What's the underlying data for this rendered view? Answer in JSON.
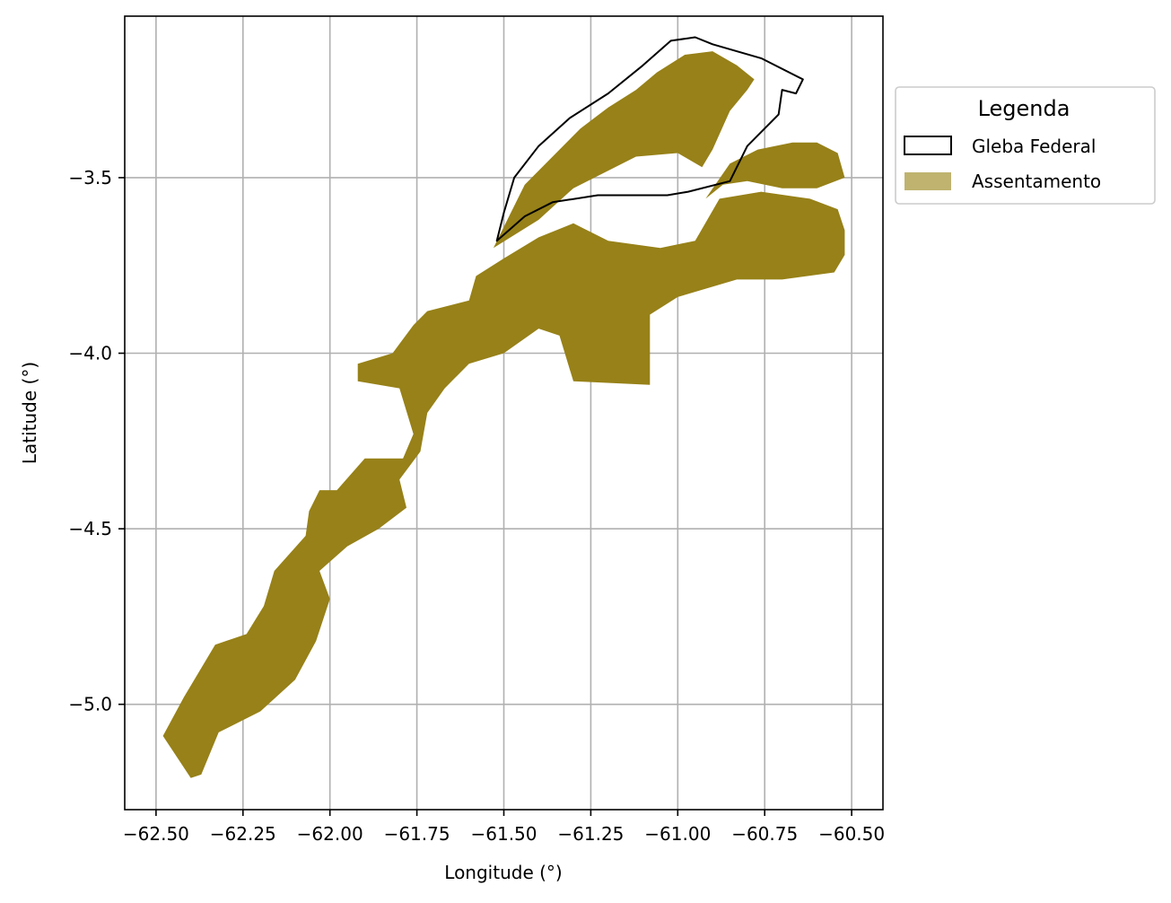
{
  "chart_data": {
    "type": "map",
    "title": "",
    "xlabel": "Longitude (°)",
    "ylabel": "Latitude (°)",
    "xlim": [
      -62.59,
      -60.41
    ],
    "ylim": [
      -5.3,
      -3.04
    ],
    "grid": true,
    "x_ticks": [
      -62.5,
      -62.25,
      -62.0,
      -61.75,
      -61.5,
      -61.25,
      -61.0,
      -60.75,
      -60.5
    ],
    "x_tick_labels": [
      "−62.50",
      "−62.25",
      "−62.00",
      "−61.75",
      "−61.50",
      "−61.25",
      "−61.00",
      "−60.75",
      "−60.50"
    ],
    "y_ticks": [
      -3.5,
      -4.0,
      -4.5,
      -5.0
    ],
    "y_tick_labels": [
      "−3.5",
      "−4.0",
      "−4.5",
      "−5.0"
    ],
    "legend": {
      "title": "Legenda",
      "placement": "outside-upper-right",
      "entries": [
        {
          "label": "Gleba Federal",
          "fill": "#ffffff",
          "edge": "#000000",
          "kind": "outline"
        },
        {
          "label": "Assentamento",
          "fill": "#bfb36f",
          "edge": "#bfb36f",
          "kind": "filled"
        }
      ]
    },
    "layers": [
      {
        "name": "Assentamento",
        "color": "#978118",
        "polygons": [
          [
            [
              -62.48,
              -5.09
            ],
            [
              -62.42,
              -4.98
            ],
            [
              -62.33,
              -4.83
            ],
            [
              -62.24,
              -4.8
            ],
            [
              -62.19,
              -4.72
            ],
            [
              -62.16,
              -4.62
            ],
            [
              -62.07,
              -4.52
            ],
            [
              -62.06,
              -4.45
            ],
            [
              -62.03,
              -4.39
            ],
            [
              -61.98,
              -4.39
            ],
            [
              -61.9,
              -4.3
            ],
            [
              -61.79,
              -4.3
            ],
            [
              -61.76,
              -4.23
            ],
            [
              -61.8,
              -4.1
            ],
            [
              -61.92,
              -4.08
            ],
            [
              -61.92,
              -4.03
            ],
            [
              -61.82,
              -4.0
            ],
            [
              -61.76,
              -3.92
            ],
            [
              -61.72,
              -3.88
            ],
            [
              -61.6,
              -3.85
            ],
            [
              -61.58,
              -3.78
            ],
            [
              -61.5,
              -3.73
            ],
            [
              -61.4,
              -3.67
            ],
            [
              -61.3,
              -3.63
            ],
            [
              -61.2,
              -3.68
            ],
            [
              -61.05,
              -3.7
            ],
            [
              -60.95,
              -3.68
            ],
            [
              -60.88,
              -3.56
            ],
            [
              -60.76,
              -3.54
            ],
            [
              -60.62,
              -3.56
            ],
            [
              -60.54,
              -3.59
            ],
            [
              -60.52,
              -3.65
            ],
            [
              -60.52,
              -3.72
            ],
            [
              -60.55,
              -3.77
            ],
            [
              -60.7,
              -3.79
            ],
            [
              -60.83,
              -3.79
            ],
            [
              -61.0,
              -3.84
            ],
            [
              -61.08,
              -3.89
            ],
            [
              -61.08,
              -4.09
            ],
            [
              -61.3,
              -4.08
            ],
            [
              -61.34,
              -3.95
            ],
            [
              -61.4,
              -3.93
            ],
            [
              -61.5,
              -4.0
            ],
            [
              -61.6,
              -4.03
            ],
            [
              -61.67,
              -4.1
            ],
            [
              -61.72,
              -4.17
            ],
            [
              -61.74,
              -4.28
            ],
            [
              -61.77,
              -4.32
            ],
            [
              -61.8,
              -4.36
            ],
            [
              -61.78,
              -4.44
            ],
            [
              -61.86,
              -4.5
            ],
            [
              -61.95,
              -4.55
            ],
            [
              -62.03,
              -4.62
            ],
            [
              -62.0,
              -4.7
            ],
            [
              -62.04,
              -4.82
            ],
            [
              -62.1,
              -4.93
            ],
            [
              -62.2,
              -5.02
            ],
            [
              -62.32,
              -5.08
            ],
            [
              -62.37,
              -5.2
            ],
            [
              -62.4,
              -5.21
            ]
          ],
          [
            [
              -61.53,
              -3.7
            ],
            [
              -61.4,
              -3.62
            ],
            [
              -61.3,
              -3.53
            ],
            [
              -61.12,
              -3.44
            ],
            [
              -61.0,
              -3.43
            ],
            [
              -60.93,
              -3.47
            ],
            [
              -60.9,
              -3.42
            ],
            [
              -60.85,
              -3.31
            ],
            [
              -60.8,
              -3.25
            ],
            [
              -60.78,
              -3.22
            ],
            [
              -60.83,
              -3.18
            ],
            [
              -60.9,
              -3.14
            ],
            [
              -60.98,
              -3.15
            ],
            [
              -61.06,
              -3.2
            ],
            [
              -61.12,
              -3.25
            ],
            [
              -61.2,
              -3.3
            ],
            [
              -61.28,
              -3.36
            ],
            [
              -61.36,
              -3.44
            ],
            [
              -61.44,
              -3.52
            ],
            [
              -61.48,
              -3.6
            ]
          ],
          [
            [
              -60.92,
              -3.56
            ],
            [
              -60.85,
              -3.46
            ],
            [
              -60.77,
              -3.42
            ],
            [
              -60.67,
              -3.4
            ],
            [
              -60.6,
              -3.4
            ],
            [
              -60.54,
              -3.43
            ],
            [
              -60.52,
              -3.5
            ],
            [
              -60.6,
              -3.53
            ],
            [
              -60.7,
              -3.53
            ],
            [
              -60.8,
              -3.51
            ],
            [
              -60.87,
              -3.52
            ]
          ]
        ]
      },
      {
        "name": "Gleba Federal",
        "color": "#000000",
        "polygons": [
          [
            [
              -61.52,
              -3.68
            ],
            [
              -61.44,
              -3.61
            ],
            [
              -61.36,
              -3.57
            ],
            [
              -61.23,
              -3.55
            ],
            [
              -61.12,
              -3.55
            ],
            [
              -61.03,
              -3.55
            ],
            [
              -60.97,
              -3.54
            ],
            [
              -60.85,
              -3.51
            ],
            [
              -60.8,
              -3.41
            ],
            [
              -60.71,
              -3.32
            ],
            [
              -60.7,
              -3.25
            ],
            [
              -60.66,
              -3.26
            ],
            [
              -60.64,
              -3.22
            ],
            [
              -60.76,
              -3.16
            ],
            [
              -60.9,
              -3.12
            ],
            [
              -60.95,
              -3.1
            ],
            [
              -61.02,
              -3.11
            ],
            [
              -61.1,
              -3.18
            ],
            [
              -61.2,
              -3.26
            ],
            [
              -61.31,
              -3.33
            ],
            [
              -61.4,
              -3.41
            ],
            [
              -61.47,
              -3.5
            ],
            [
              -61.5,
              -3.6
            ]
          ]
        ]
      }
    ]
  }
}
